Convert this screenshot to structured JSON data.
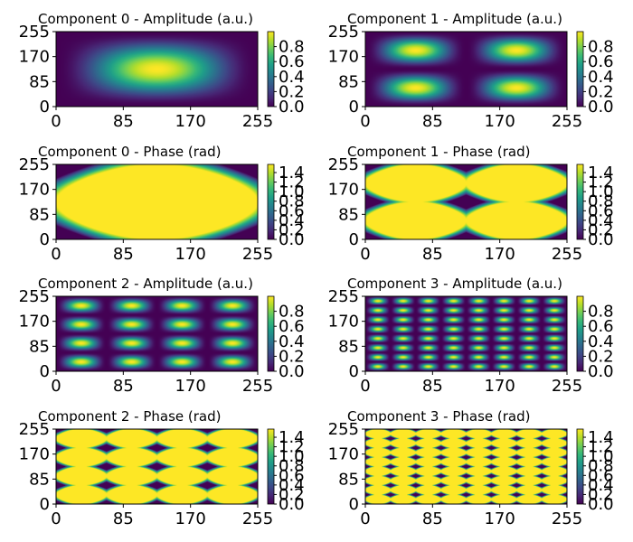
{
  "chart_data": [
    {
      "type": "heatmap",
      "title": "Component 0 - Amplitude (a.u.)",
      "quantity": "amplitude",
      "kx": 1,
      "ky": 1,
      "xlim": [
        0,
        255
      ],
      "ylim": [
        0,
        255
      ],
      "xticks": [
        "0",
        "85",
        "170",
        "255"
      ],
      "yticks": [
        "0",
        "85",
        "170",
        "255"
      ],
      "colorbar": {
        "range": [
          0,
          1.0
        ],
        "ticks": [
          "0.0",
          "0.2",
          "0.4",
          "0.6",
          "0.8"
        ],
        "tick_values": [
          0.0,
          0.2,
          0.4,
          0.6,
          0.8
        ]
      },
      "colormap": "viridis"
    },
    {
      "type": "heatmap",
      "title": "Component 1 - Amplitude (a.u.)",
      "quantity": "amplitude",
      "kx": 2,
      "ky": 2,
      "xlim": [
        0,
        255
      ],
      "ylim": [
        0,
        255
      ],
      "xticks": [
        "0",
        "85",
        "170",
        "255"
      ],
      "yticks": [
        "0",
        "85",
        "170",
        "255"
      ],
      "colorbar": {
        "range": [
          0,
          1.0
        ],
        "ticks": [
          "0.0",
          "0.2",
          "0.4",
          "0.6",
          "0.8"
        ],
        "tick_values": [
          0.0,
          0.2,
          0.4,
          0.6,
          0.8
        ]
      },
      "colormap": "viridis"
    },
    {
      "type": "heatmap",
      "title": "Component 0 - Phase (rad)",
      "quantity": "phase",
      "kx": 1,
      "ky": 1,
      "xlim": [
        0,
        255
      ],
      "ylim": [
        0,
        255
      ],
      "xticks": [
        "0",
        "85",
        "170",
        "255"
      ],
      "yticks": [
        "0",
        "85",
        "170",
        "255"
      ],
      "colorbar": {
        "range": [
          0,
          1.5708
        ],
        "ticks": [
          "0.0",
          "0.2",
          "0.4",
          "0.6",
          "0.8",
          "1.0",
          "1.2",
          "1.4"
        ],
        "tick_values": [
          0.0,
          0.2,
          0.4,
          0.6,
          0.8,
          1.0,
          1.2,
          1.4
        ]
      },
      "colormap": "viridis"
    },
    {
      "type": "heatmap",
      "title": "Component 1 - Phase (rad)",
      "quantity": "phase",
      "kx": 2,
      "ky": 2,
      "xlim": [
        0,
        255
      ],
      "ylim": [
        0,
        255
      ],
      "xticks": [
        "0",
        "85",
        "170",
        "255"
      ],
      "yticks": [
        "0",
        "85",
        "170",
        "255"
      ],
      "colorbar": {
        "range": [
          0,
          1.5708
        ],
        "ticks": [
          "0.0",
          "0.2",
          "0.4",
          "0.6",
          "0.8",
          "1.0",
          "1.2",
          "1.4"
        ],
        "tick_values": [
          0.0,
          0.2,
          0.4,
          0.6,
          0.8,
          1.0,
          1.2,
          1.4
        ]
      },
      "colormap": "viridis"
    },
    {
      "type": "heatmap",
      "title": "Component 2 - Amplitude (a.u.)",
      "quantity": "amplitude",
      "kx": 4,
      "ky": 4,
      "xlim": [
        0,
        255
      ],
      "ylim": [
        0,
        255
      ],
      "xticks": [
        "0",
        "85",
        "170",
        "255"
      ],
      "yticks": [
        "0",
        "85",
        "170",
        "255"
      ],
      "colorbar": {
        "range": [
          0,
          1.0
        ],
        "ticks": [
          "0.0",
          "0.2",
          "0.4",
          "0.6",
          "0.8"
        ],
        "tick_values": [
          0.0,
          0.2,
          0.4,
          0.6,
          0.8
        ]
      },
      "colormap": "viridis"
    },
    {
      "type": "heatmap",
      "title": "Component 3 - Amplitude (a.u.)",
      "quantity": "amplitude",
      "kx": 8,
      "ky": 8,
      "xlim": [
        0,
        255
      ],
      "ylim": [
        0,
        255
      ],
      "xticks": [
        "0",
        "85",
        "170",
        "255"
      ],
      "yticks": [
        "0",
        "85",
        "170",
        "255"
      ],
      "colorbar": {
        "range": [
          0,
          1.0
        ],
        "ticks": [
          "0.0",
          "0.2",
          "0.4",
          "0.6",
          "0.8"
        ],
        "tick_values": [
          0.0,
          0.2,
          0.4,
          0.6,
          0.8
        ]
      },
      "colormap": "viridis"
    },
    {
      "type": "heatmap",
      "title": "Component 2 - Phase (rad)",
      "quantity": "phase",
      "kx": 4,
      "ky": 4,
      "xlim": [
        0,
        255
      ],
      "ylim": [
        0,
        255
      ],
      "xticks": [
        "0",
        "85",
        "170",
        "255"
      ],
      "yticks": [
        "0",
        "85",
        "170",
        "255"
      ],
      "colorbar": {
        "range": [
          0,
          1.5708
        ],
        "ticks": [
          "0.0",
          "0.2",
          "0.4",
          "0.6",
          "0.8",
          "1.0",
          "1.2",
          "1.4"
        ],
        "tick_values": [
          0.0,
          0.2,
          0.4,
          0.6,
          0.8,
          1.0,
          1.2,
          1.4
        ]
      },
      "colormap": "viridis"
    },
    {
      "type": "heatmap",
      "title": "Component 3 - Phase (rad)",
      "quantity": "phase",
      "kx": 8,
      "ky": 8,
      "xlim": [
        0,
        255
      ],
      "ylim": [
        0,
        255
      ],
      "xticks": [
        "0",
        "85",
        "170",
        "255"
      ],
      "yticks": [
        "0",
        "85",
        "170",
        "255"
      ],
      "colorbar": {
        "range": [
          0,
          1.5708
        ],
        "ticks": [
          "0.0",
          "0.2",
          "0.4",
          "0.6",
          "0.8",
          "1.0",
          "1.2",
          "1.4"
        ],
        "tick_values": [
          0.0,
          0.2,
          0.4,
          0.6,
          0.8,
          1.0,
          1.2,
          1.4
        ]
      },
      "colormap": "viridis"
    }
  ]
}
